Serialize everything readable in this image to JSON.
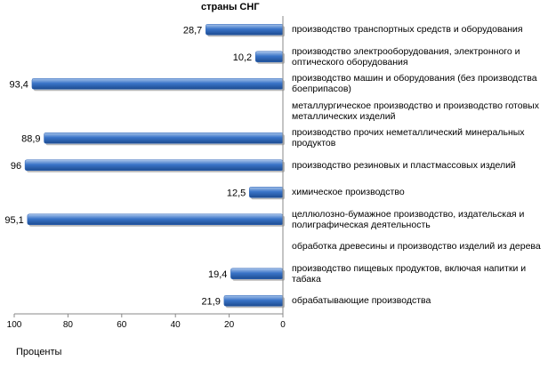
{
  "chart_data": {
    "type": "bar",
    "orientation": "horizontal",
    "x_reversed": true,
    "title": "страны СНГ",
    "xlabel": "Проценты",
    "xlim": [
      0,
      100
    ],
    "xticks": [
      100,
      80,
      60,
      40,
      20,
      0
    ],
    "categories": [
      "производство транспортных средств и оборудования",
      "производство электрооборудования, электронного и оптического оборудования",
      "производство машин и оборудования (без производства боеприпасов)",
      "металлургическое производство и производство готовых металлических изделий",
      "производство прочих неметаллический минеральных продуктов",
      "производство резиновых и пластмассовых изделий",
      "химическое производство",
      "целлюлозно-бумажное производство, издательская и полиграфическая деятельность",
      "обработка древесины и производство изделий из дерева",
      "производство пищевых продуктов, включая напитки и табака",
      "обрабатывающие производства"
    ],
    "values": [
      28.7,
      10.2,
      93.4,
      null,
      88.9,
      96,
      12.5,
      95.1,
      null,
      19.4,
      21.9
    ],
    "value_labels": [
      "28,7",
      "10,2",
      "93,4",
      "",
      "88,9",
      "96",
      "12,5",
      "95,1",
      "",
      "19,4",
      "21,9"
    ],
    "bar_color": "#2f66b8",
    "grid": false,
    "legend": "none"
  }
}
